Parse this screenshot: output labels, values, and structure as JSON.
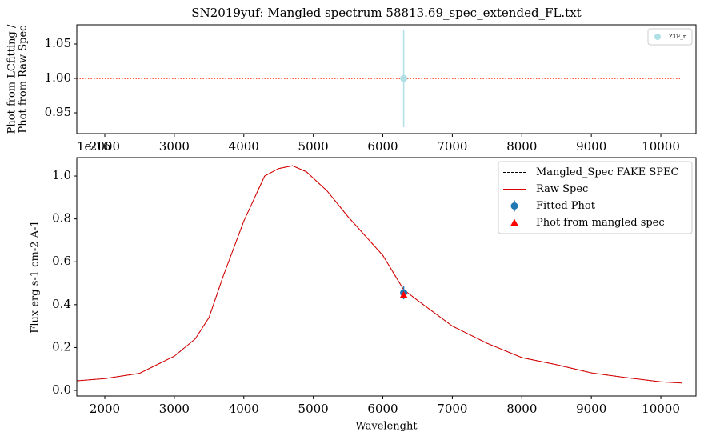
{
  "chart_data": [
    {
      "type": "scatter",
      "title": "SN2019yuf: Mangled spectrum 58813.69_spec_extended_FL.txt",
      "ylabel": [
        "Phot from LCfitting /",
        "Phot from Raw Spec"
      ],
      "xlim": [
        1597,
        10506
      ],
      "ylim": [
        0.9198,
        1.0779
      ],
      "xticks": [
        2000,
        3000,
        4000,
        5000,
        6000,
        7000,
        8000,
        9000,
        10000
      ],
      "yticks": [
        0.95,
        {
          "value": 1.0,
          "label": "1.00"
        },
        1.05
      ],
      "hline": {
        "y": 1.0,
        "x": [
          1597,
          10300
        ],
        "color": "#ff2200"
      },
      "series": [
        {
          "name": "ZTF_r",
          "kind": "errorbar",
          "color": "#b0e0e6",
          "x": [
            6300
          ],
          "values": [
            1.0
          ],
          "errors": [
            0.071
          ]
        }
      ],
      "legend": "upper right"
    },
    {
      "type": "line",
      "xlabel": "Wavelenght",
      "ylabel": [
        "Flux erg s-1 cm-2 A-1"
      ],
      "offset_text": "1e-16",
      "xlim": [
        1597,
        10506
      ],
      "ylim": [
        -0.026,
        1.086
      ],
      "xticks": [
        2000,
        3000,
        4000,
        5000,
        6000,
        7000,
        8000,
        9000,
        10000
      ],
      "yticks": [
        {
          "value": 0,
          "label": "0.0"
        },
        0.2,
        0.4,
        0.6,
        0.8,
        {
          "value": 1,
          "label": "1.0"
        }
      ],
      "x": [
        1600,
        2000,
        2500,
        3000,
        3300,
        3500,
        3700,
        4000,
        4300,
        4500,
        4700,
        4900,
        5200,
        5500,
        6000,
        6300,
        6500,
        7000,
        7500,
        8000,
        8500,
        9000,
        9500,
        10000,
        10300
      ],
      "series": [
        {
          "name": "Mangled_Spec FAKE SPEC",
          "kind": "dashed",
          "color": "#000000",
          "values": [
            0.045,
            0.055,
            0.08,
            0.16,
            0.24,
            0.34,
            0.53,
            0.79,
            1.0,
            1.035,
            1.048,
            1.02,
            0.93,
            0.81,
            0.63,
            0.47,
            0.42,
            0.3,
            0.22,
            0.153,
            0.12,
            0.082,
            0.06,
            0.04,
            0.035
          ]
        },
        {
          "name": "Raw Spec",
          "kind": "solid",
          "color": "#dd0000",
          "values": [
            0.045,
            0.055,
            0.08,
            0.16,
            0.24,
            0.34,
            0.53,
            0.79,
            1.0,
            1.035,
            1.048,
            1.02,
            0.93,
            0.81,
            0.63,
            0.47,
            0.42,
            0.3,
            0.22,
            0.153,
            0.12,
            0.082,
            0.06,
            0.04,
            0.035
          ]
        },
        {
          "name": "Fitted Phot",
          "kind": "errorbar",
          "color": "#1f77b4",
          "x": [
            6300
          ],
          "values": [
            0.455
          ],
          "errors": [
            0.03
          ]
        },
        {
          "name": "Phot from mangled spec",
          "kind": "triangle",
          "color": "#ff0000",
          "x": [
            6300
          ],
          "values": [
            0.445
          ]
        }
      ],
      "legend": "upper right"
    }
  ]
}
